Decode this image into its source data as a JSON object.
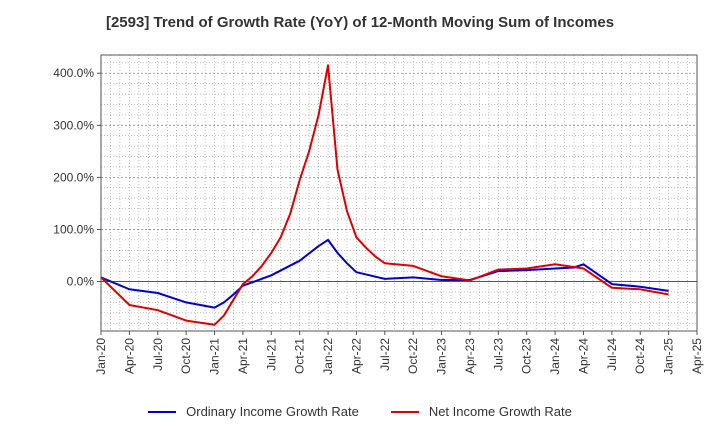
{
  "chart_data": {
    "type": "line",
    "title": "[2593]  Trend of Growth Rate (YoY) of 12-Month Moving Sum of Incomes",
    "xlabel": "",
    "ylabel": "",
    "x_ticks": [
      "Jan-20",
      "Apr-20",
      "Jul-20",
      "Oct-20",
      "Jan-21",
      "Apr-21",
      "Jul-21",
      "Oct-21",
      "Jan-22",
      "Apr-22",
      "Jul-22",
      "Oct-22",
      "Jan-23",
      "Apr-23",
      "Jul-23",
      "Oct-23",
      "Jan-24",
      "Apr-24",
      "Jul-24",
      "Oct-24",
      "Jan-25",
      "Apr-25"
    ],
    "y_ticks": [
      {
        "value": 0,
        "label": "0.0%"
      },
      {
        "value": 100,
        "label": "100.0%"
      },
      {
        "value": 200,
        "label": "200.0%"
      },
      {
        "value": 300,
        "label": "300.0%"
      },
      {
        "value": 400,
        "label": "400.0%"
      }
    ],
    "ylim": [
      -95,
      435
    ],
    "grid": true,
    "legend_position": "bottom",
    "series": [
      {
        "name": "Ordinary Income Growth Rate",
        "color": "#0000cc",
        "x": [
          "Jan-20",
          "Apr-20",
          "Jul-20",
          "Oct-20",
          "Jan-21",
          "Feb-21",
          "Mar-21",
          "Apr-21",
          "Jul-21",
          "Oct-21",
          "Dec-21",
          "Jan-22",
          "Feb-22",
          "Mar-22",
          "Apr-22",
          "Jul-22",
          "Oct-22",
          "Jan-23",
          "Apr-23",
          "Jul-23",
          "Oct-23",
          "Jan-24",
          "Mar-24",
          "Apr-24",
          "Jul-24",
          "Oct-24",
          "Jan-25"
        ],
        "values": [
          8,
          -15,
          -22,
          -40,
          -50,
          -40,
          -25,
          -8,
          12,
          40,
          68,
          80,
          55,
          35,
          18,
          5,
          8,
          3,
          3,
          20,
          22,
          25,
          27,
          33,
          -5,
          -10,
          -18
        ]
      },
      {
        "name": "Net Income Growth Rate",
        "color": "#dd0000",
        "x": [
          "Jan-20",
          "Apr-20",
          "Jul-20",
          "Oct-20",
          "Jan-21",
          "Feb-21",
          "Mar-21",
          "Apr-21",
          "May-21",
          "Jun-21",
          "Jul-21",
          "Aug-21",
          "Sep-21",
          "Oct-21",
          "Nov-21",
          "Dec-21",
          "Jan-22",
          "Feb-22",
          "Mar-22",
          "Apr-22",
          "May-22",
          "Jun-22",
          "Jul-22",
          "Oct-22",
          "Jan-23",
          "Apr-23",
          "Jul-23",
          "Oct-23",
          "Jan-24",
          "Apr-24",
          "Jul-24",
          "Oct-24",
          "Jan-25"
        ],
        "values": [
          8,
          -45,
          -55,
          -75,
          -83,
          -65,
          -35,
          -5,
          10,
          30,
          55,
          85,
          130,
          195,
          250,
          320,
          415,
          215,
          135,
          85,
          65,
          48,
          35,
          30,
          10,
          2,
          23,
          25,
          33,
          25,
          -12,
          -15,
          -25
        ]
      }
    ]
  }
}
